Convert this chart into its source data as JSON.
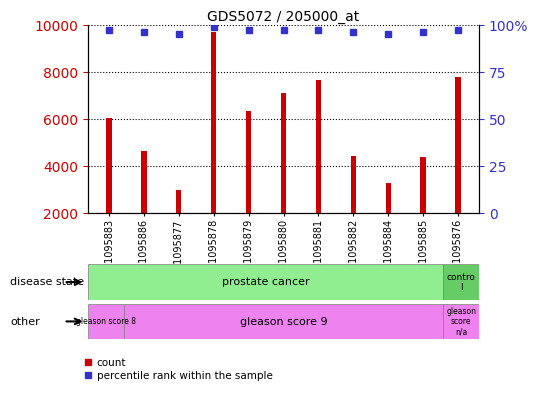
{
  "title": "GDS5072 / 205000_at",
  "categories": [
    "GSM1095883",
    "GSM1095886",
    "GSM1095877",
    "GSM1095878",
    "GSM1095879",
    "GSM1095880",
    "GSM1095881",
    "GSM1095882",
    "GSM1095884",
    "GSM1095885",
    "GSM1095876"
  ],
  "bar_values": [
    6050,
    4650,
    3000,
    9700,
    6350,
    7100,
    7650,
    4450,
    3300,
    4400,
    7800
  ],
  "percentile_values": [
    97,
    96,
    95,
    99,
    97,
    97,
    97,
    96,
    95,
    96,
    97
  ],
  "bar_color": "#cc0000",
  "dot_color": "#3333cc",
  "ylim_left": [
    2000,
    10000
  ],
  "ylim_right": [
    0,
    100
  ],
  "yticks_left": [
    2000,
    4000,
    6000,
    8000,
    10000
  ],
  "yticks_right": [
    0,
    25,
    50,
    75,
    100
  ],
  "disease_state_color": "#90ee90",
  "control_color": "#66cc66",
  "other_color": "#ee82ee",
  "tick_label_color_left": "#cc0000",
  "tick_label_color_right": "#3333cc",
  "annotation_row1_label": "disease state",
  "annotation_row2_label": "other"
}
